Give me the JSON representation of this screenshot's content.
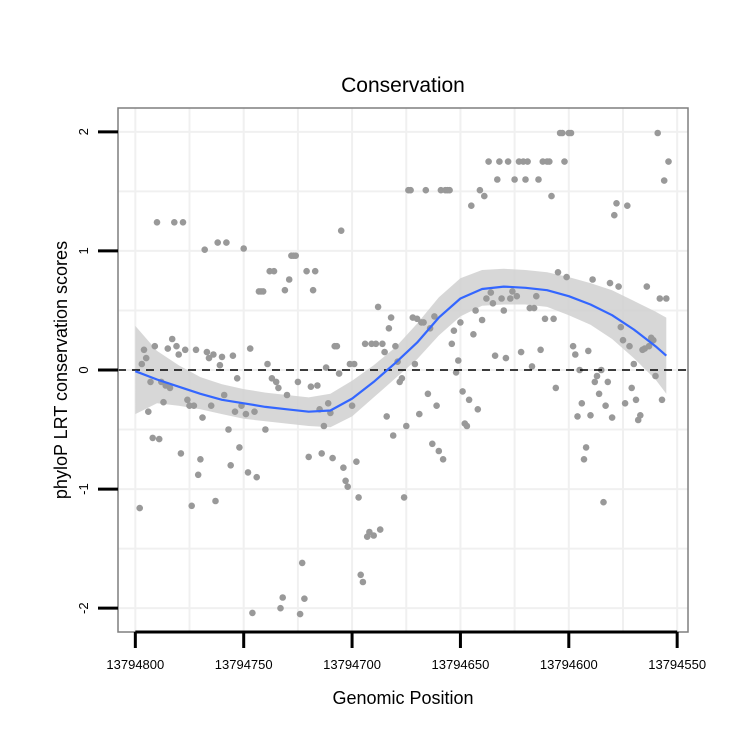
{
  "chart_data": {
    "type": "scatter",
    "title": "Conservation",
    "xlabel": "Genomic Position",
    "ylabel": "phyloP LRT conservation scores",
    "x_reversed": true,
    "xlim": [
      13794808,
      13794545
    ],
    "ylim": [
      -2.2,
      2.2
    ],
    "x_ticks": [
      13794800,
      13794750,
      13794700,
      13794650,
      13794600,
      13794550
    ],
    "x_tick_labels": [
      "13794800",
      "13794750",
      "13794700",
      "13794650",
      "13794600",
      "13794550"
    ],
    "y_ticks": [
      -2,
      -1,
      0,
      1,
      2
    ],
    "y_tick_labels": [
      "-2",
      "-1",
      "0",
      "1",
      "2"
    ],
    "grid": true,
    "reference_line": {
      "y": 0,
      "style": "dashed"
    },
    "colors": {
      "points": "#999999",
      "smooth": "#3366ff",
      "ribbon": "#d0d0d0",
      "panel_border": "#7f7f7f",
      "grid": "#f0f0f0"
    },
    "points": [
      {
        "x": 13794798,
        "y": -1.16
      },
      {
        "x": 13794797,
        "y": 0.05
      },
      {
        "x": 13794796,
        "y": 0.17
      },
      {
        "x": 13794795,
        "y": 0.1
      },
      {
        "x": 13794794,
        "y": -0.35
      },
      {
        "x": 13794793,
        "y": -0.1
      },
      {
        "x": 13794792,
        "y": -0.57
      },
      {
        "x": 13794791,
        "y": 0.2
      },
      {
        "x": 13794790,
        "y": 1.24
      },
      {
        "x": 13794789,
        "y": -0.58
      },
      {
        "x": 13794788,
        "y": -0.1
      },
      {
        "x": 13794787,
        "y": -0.27
      },
      {
        "x": 13794786,
        "y": -0.13
      },
      {
        "x": 13794785,
        "y": 0.18
      },
      {
        "x": 13794784,
        "y": -0.15
      },
      {
        "x": 13794783,
        "y": 0.26
      },
      {
        "x": 13794782,
        "y": 1.24
      },
      {
        "x": 13794781,
        "y": 0.2
      },
      {
        "x": 13794780,
        "y": 0.13
      },
      {
        "x": 13794779,
        "y": -0.7
      },
      {
        "x": 13794778,
        "y": 1.24
      },
      {
        "x": 13794777,
        "y": 0.17
      },
      {
        "x": 13794776,
        "y": -0.25
      },
      {
        "x": 13794775,
        "y": -0.3
      },
      {
        "x": 13794774,
        "y": -1.14
      },
      {
        "x": 13794773,
        "y": -0.3
      },
      {
        "x": 13794772,
        "y": 0.17
      },
      {
        "x": 13794771,
        "y": -0.88
      },
      {
        "x": 13794770,
        "y": -0.75
      },
      {
        "x": 13794769,
        "y": -0.4
      },
      {
        "x": 13794768,
        "y": 1.01
      },
      {
        "x": 13794767,
        "y": 0.15
      },
      {
        "x": 13794766,
        "y": 0.1
      },
      {
        "x": 13794765,
        "y": -0.3
      },
      {
        "x": 13794764,
        "y": 0.13
      },
      {
        "x": 13794763,
        "y": -1.1
      },
      {
        "x": 13794762,
        "y": 1.07
      },
      {
        "x": 13794761,
        "y": 0.04
      },
      {
        "x": 13794760,
        "y": 0.11
      },
      {
        "x": 13794759,
        "y": -0.21
      },
      {
        "x": 13794758,
        "y": 1.07
      },
      {
        "x": 13794757,
        "y": -0.5
      },
      {
        "x": 13794756,
        "y": -0.8
      },
      {
        "x": 13794755,
        "y": 0.12
      },
      {
        "x": 13794754,
        "y": -0.35
      },
      {
        "x": 13794753,
        "y": -0.07
      },
      {
        "x": 13794752,
        "y": -0.65
      },
      {
        "x": 13794751,
        "y": -0.3
      },
      {
        "x": 13794750,
        "y": 1.02
      },
      {
        "x": 13794749,
        "y": -0.37
      },
      {
        "x": 13794748,
        "y": -0.86
      },
      {
        "x": 13794747,
        "y": 0.18
      },
      {
        "x": 13794746,
        "y": -2.04
      },
      {
        "x": 13794745,
        "y": -0.35
      },
      {
        "x": 13794744,
        "y": -0.9
      },
      {
        "x": 13794743,
        "y": 0.66
      },
      {
        "x": 13794742,
        "y": 0.66
      },
      {
        "x": 13794741,
        "y": 0.66
      },
      {
        "x": 13794740,
        "y": -0.5
      },
      {
        "x": 13794739,
        "y": 0.05
      },
      {
        "x": 13794738,
        "y": 0.83
      },
      {
        "x": 13794737,
        "y": -0.07
      },
      {
        "x": 13794736,
        "y": 0.83
      },
      {
        "x": 13794735,
        "y": -0.1
      },
      {
        "x": 13794734,
        "y": -0.15
      },
      {
        "x": 13794733,
        "y": -2.0
      },
      {
        "x": 13794732,
        "y": -1.91
      },
      {
        "x": 13794731,
        "y": 0.67
      },
      {
        "x": 13794730,
        "y": -0.21
      },
      {
        "x": 13794729,
        "y": 0.76
      },
      {
        "x": 13794728,
        "y": 0.96
      },
      {
        "x": 13794727,
        "y": 0.96
      },
      {
        "x": 13794726,
        "y": 0.96
      },
      {
        "x": 13794725,
        "y": -0.1
      },
      {
        "x": 13794724,
        "y": -2.05
      },
      {
        "x": 13794723,
        "y": -1.62
      },
      {
        "x": 13794722,
        "y": -1.92
      },
      {
        "x": 13794721,
        "y": 0.83
      },
      {
        "x": 13794720,
        "y": -0.73
      },
      {
        "x": 13794719,
        "y": -0.14
      },
      {
        "x": 13794718,
        "y": 0.67
      },
      {
        "x": 13794717,
        "y": 0.83
      },
      {
        "x": 13794716,
        "y": -0.13
      },
      {
        "x": 13794715,
        "y": -0.33
      },
      {
        "x": 13794714,
        "y": -0.7
      },
      {
        "x": 13794713,
        "y": -0.47
      },
      {
        "x": 13794712,
        "y": 0.02
      },
      {
        "x": 13794711,
        "y": -0.28
      },
      {
        "x": 13794710,
        "y": -0.36
      },
      {
        "x": 13794709,
        "y": -0.74
      },
      {
        "x": 13794708,
        "y": 0.2
      },
      {
        "x": 13794707,
        "y": 0.2
      },
      {
        "x": 13794706,
        "y": -0.03
      },
      {
        "x": 13794705,
        "y": 1.17
      },
      {
        "x": 13794704,
        "y": -0.82
      },
      {
        "x": 13794703,
        "y": -0.93
      },
      {
        "x": 13794702,
        "y": -0.98
      },
      {
        "x": 13794701,
        "y": 0.05
      },
      {
        "x": 13794700,
        "y": -0.3
      },
      {
        "x": 13794699,
        "y": 0.05
      },
      {
        "x": 13794698,
        "y": -0.77
      },
      {
        "x": 13794697,
        "y": -1.07
      },
      {
        "x": 13794696,
        "y": -1.72
      },
      {
        "x": 13794695,
        "y": -1.78
      },
      {
        "x": 13794694,
        "y": 0.22
      },
      {
        "x": 13794693,
        "y": -1.4
      },
      {
        "x": 13794692,
        "y": -1.36
      },
      {
        "x": 13794691,
        "y": 0.22
      },
      {
        "x": 13794690,
        "y": -1.39
      },
      {
        "x": 13794689,
        "y": 0.22
      },
      {
        "x": 13794688,
        "y": 0.53
      },
      {
        "x": 13794687,
        "y": -1.34
      },
      {
        "x": 13794686,
        "y": 0.22
      },
      {
        "x": 13794685,
        "y": 0.15
      },
      {
        "x": 13794684,
        "y": -0.39
      },
      {
        "x": 13794683,
        "y": 0.35
      },
      {
        "x": 13794682,
        "y": 0.44
      },
      {
        "x": 13794681,
        "y": -0.55
      },
      {
        "x": 13794680,
        "y": 0.2
      },
      {
        "x": 13794679,
        "y": 0.07
      },
      {
        "x": 13794678,
        "y": -0.1
      },
      {
        "x": 13794677,
        "y": -0.07
      },
      {
        "x": 13794676,
        "y": -1.07
      },
      {
        "x": 13794675,
        "y": -0.47
      },
      {
        "x": 13794674,
        "y": 1.51
      },
      {
        "x": 13794673,
        "y": 1.51
      },
      {
        "x": 13794672,
        "y": 0.44
      },
      {
        "x": 13794671,
        "y": 0.05
      },
      {
        "x": 13794670,
        "y": 0.43
      },
      {
        "x": 13794669,
        "y": -0.37
      },
      {
        "x": 13794668,
        "y": 0.4
      },
      {
        "x": 13794667,
        "y": 0.4
      },
      {
        "x": 13794666,
        "y": 1.51
      },
      {
        "x": 13794665,
        "y": -0.2
      },
      {
        "x": 13794664,
        "y": 0.35
      },
      {
        "x": 13794663,
        "y": -0.62
      },
      {
        "x": 13794662,
        "y": 0.45
      },
      {
        "x": 13794661,
        "y": -0.3
      },
      {
        "x": 13794660,
        "y": -0.68
      },
      {
        "x": 13794659,
        "y": 1.51
      },
      {
        "x": 13794658,
        "y": -0.75
      },
      {
        "x": 13794657,
        "y": 1.51
      },
      {
        "x": 13794656,
        "y": 1.51
      },
      {
        "x": 13794655,
        "y": 1.51
      },
      {
        "x": 13794654,
        "y": 0.22
      },
      {
        "x": 13794653,
        "y": 0.33
      },
      {
        "x": 13794652,
        "y": -0.02
      },
      {
        "x": 13794651,
        "y": 0.08
      },
      {
        "x": 13794650,
        "y": 0.4
      },
      {
        "x": 13794649,
        "y": -0.18
      },
      {
        "x": 13794648,
        "y": -0.45
      },
      {
        "x": 13794647,
        "y": -0.47
      },
      {
        "x": 13794646,
        "y": -0.25
      },
      {
        "x": 13794645,
        "y": 1.38
      },
      {
        "x": 13794644,
        "y": 0.3
      },
      {
        "x": 13794643,
        "y": 0.5
      },
      {
        "x": 13794642,
        "y": -0.33
      },
      {
        "x": 13794641,
        "y": 1.51
      },
      {
        "x": 13794640,
        "y": 0.42
      },
      {
        "x": 13794639,
        "y": 1.46
      },
      {
        "x": 13794638,
        "y": 0.6
      },
      {
        "x": 13794637,
        "y": 1.75
      },
      {
        "x": 13794636,
        "y": 0.65
      },
      {
        "x": 13794635,
        "y": 0.56
      },
      {
        "x": 13794634,
        "y": 0.12
      },
      {
        "x": 13794633,
        "y": 1.6
      },
      {
        "x": 13794632,
        "y": 1.75
      },
      {
        "x": 13794631,
        "y": 0.6
      },
      {
        "x": 13794630,
        "y": 0.5
      },
      {
        "x": 13794629,
        "y": 0.1
      },
      {
        "x": 13794628,
        "y": 1.75
      },
      {
        "x": 13794627,
        "y": 0.6
      },
      {
        "x": 13794626,
        "y": 0.66
      },
      {
        "x": 13794625,
        "y": 1.6
      },
      {
        "x": 13794624,
        "y": 0.62
      },
      {
        "x": 13794623,
        "y": 1.75
      },
      {
        "x": 13794622,
        "y": 0.15
      },
      {
        "x": 13794621,
        "y": 1.75
      },
      {
        "x": 13794620,
        "y": 1.6
      },
      {
        "x": 13794619,
        "y": 1.75
      },
      {
        "x": 13794618,
        "y": 0.52
      },
      {
        "x": 13794617,
        "y": 0.03
      },
      {
        "x": 13794616,
        "y": 0.52
      },
      {
        "x": 13794615,
        "y": 0.62
      },
      {
        "x": 13794614,
        "y": 1.6
      },
      {
        "x": 13794613,
        "y": 0.17
      },
      {
        "x": 13794612,
        "y": 1.75
      },
      {
        "x": 13794611,
        "y": 0.43
      },
      {
        "x": 13794610,
        "y": 1.75
      },
      {
        "x": 13794609,
        "y": 1.75
      },
      {
        "x": 13794608,
        "y": 1.46
      },
      {
        "x": 13794607,
        "y": 0.43
      },
      {
        "x": 13794606,
        "y": -0.15
      },
      {
        "x": 13794605,
        "y": 0.82
      },
      {
        "x": 13794604,
        "y": 1.99
      },
      {
        "x": 13794603,
        "y": 1.99
      },
      {
        "x": 13794602,
        "y": 1.75
      },
      {
        "x": 13794601,
        "y": 0.78
      },
      {
        "x": 13794600,
        "y": 1.99
      },
      {
        "x": 13794599,
        "y": 1.99
      },
      {
        "x": 13794598,
        "y": 0.2
      },
      {
        "x": 13794597,
        "y": 0.13
      },
      {
        "x": 13794596,
        "y": -0.39
      },
      {
        "x": 13794595,
        "y": 0.0
      },
      {
        "x": 13794594,
        "y": -0.28
      },
      {
        "x": 13794593,
        "y": -0.75
      },
      {
        "x": 13794592,
        "y": -0.65
      },
      {
        "x": 13794591,
        "y": 0.16
      },
      {
        "x": 13794590,
        "y": -0.38
      },
      {
        "x": 13794589,
        "y": 0.76
      },
      {
        "x": 13794588,
        "y": -0.1
      },
      {
        "x": 13794587,
        "y": -0.05
      },
      {
        "x": 13794586,
        "y": -0.2
      },
      {
        "x": 13794585,
        "y": 0.0
      },
      {
        "x": 13794584,
        "y": -1.11
      },
      {
        "x": 13794583,
        "y": -0.3
      },
      {
        "x": 13794582,
        "y": -0.1
      },
      {
        "x": 13794581,
        "y": 0.73
      },
      {
        "x": 13794580,
        "y": -0.4
      },
      {
        "x": 13794579,
        "y": 1.3
      },
      {
        "x": 13794578,
        "y": 1.4
      },
      {
        "x": 13794577,
        "y": 0.7
      },
      {
        "x": 13794576,
        "y": 0.36
      },
      {
        "x": 13794575,
        "y": 0.25
      },
      {
        "x": 13794574,
        "y": -0.28
      },
      {
        "x": 13794573,
        "y": 1.38
      },
      {
        "x": 13794572,
        "y": 0.2
      },
      {
        "x": 13794571,
        "y": -0.15
      },
      {
        "x": 13794570,
        "y": 0.05
      },
      {
        "x": 13794569,
        "y": -0.25
      },
      {
        "x": 13794568,
        "y": -0.42
      },
      {
        "x": 13794567,
        "y": -0.38
      },
      {
        "x": 13794566,
        "y": 0.17
      },
      {
        "x": 13794565,
        "y": 0.18
      },
      {
        "x": 13794564,
        "y": 0.7
      },
      {
        "x": 13794563,
        "y": 0.2
      },
      {
        "x": 13794562,
        "y": 0.27
      },
      {
        "x": 13794561,
        "y": 0.25
      },
      {
        "x": 13794560,
        "y": -0.05
      },
      {
        "x": 13794559,
        "y": 1.99
      },
      {
        "x": 13794558,
        "y": 0.6
      },
      {
        "x": 13794557,
        "y": -0.25
      },
      {
        "x": 13794556,
        "y": 1.59
      },
      {
        "x": 13794555,
        "y": 0.6
      },
      {
        "x": 13794554,
        "y": 1.75
      }
    ],
    "smooth": [
      {
        "x": 13794800,
        "y": -0.01,
        "lo": -0.37,
        "hi": 0.37
      },
      {
        "x": 13794790,
        "y": -0.08,
        "lo": -0.28,
        "hi": 0.16
      },
      {
        "x": 13794780,
        "y": -0.14,
        "lo": -0.3,
        "hi": 0.04
      },
      {
        "x": 13794770,
        "y": -0.2,
        "lo": -0.33,
        "hi": -0.06
      },
      {
        "x": 13794760,
        "y": -0.25,
        "lo": -0.37,
        "hi": -0.12
      },
      {
        "x": 13794750,
        "y": -0.28,
        "lo": -0.41,
        "hi": -0.16
      },
      {
        "x": 13794740,
        "y": -0.31,
        "lo": -0.43,
        "hi": -0.19
      },
      {
        "x": 13794730,
        "y": -0.33,
        "lo": -0.45,
        "hi": -0.21
      },
      {
        "x": 13794720,
        "y": -0.35,
        "lo": -0.47,
        "hi": -0.23
      },
      {
        "x": 13794710,
        "y": -0.34,
        "lo": -0.48,
        "hi": -0.2
      },
      {
        "x": 13794700,
        "y": -0.24,
        "lo": -0.39,
        "hi": -0.09
      },
      {
        "x": 13794690,
        "y": -0.1,
        "lo": -0.23,
        "hi": 0.04
      },
      {
        "x": 13794680,
        "y": 0.06,
        "lo": -0.07,
        "hi": 0.19
      },
      {
        "x": 13794670,
        "y": 0.23,
        "lo": 0.09,
        "hi": 0.39
      },
      {
        "x": 13794660,
        "y": 0.44,
        "lo": 0.29,
        "hi": 0.61
      },
      {
        "x": 13794650,
        "y": 0.6,
        "lo": 0.45,
        "hi": 0.77
      },
      {
        "x": 13794640,
        "y": 0.68,
        "lo": 0.54,
        "hi": 0.84
      },
      {
        "x": 13794630,
        "y": 0.7,
        "lo": 0.55,
        "hi": 0.85
      },
      {
        "x": 13794620,
        "y": 0.69,
        "lo": 0.55,
        "hi": 0.84
      },
      {
        "x": 13794610,
        "y": 0.67,
        "lo": 0.53,
        "hi": 0.82
      },
      {
        "x": 13794600,
        "y": 0.62,
        "lo": 0.46,
        "hi": 0.78
      },
      {
        "x": 13794590,
        "y": 0.55,
        "lo": 0.38,
        "hi": 0.73
      },
      {
        "x": 13794580,
        "y": 0.46,
        "lo": 0.26,
        "hi": 0.67
      },
      {
        "x": 13794570,
        "y": 0.34,
        "lo": 0.1,
        "hi": 0.58
      },
      {
        "x": 13794560,
        "y": 0.2,
        "lo": -0.08,
        "hi": 0.49
      },
      {
        "x": 13794555,
        "y": 0.12,
        "lo": -0.2,
        "hi": 0.44
      }
    ]
  }
}
